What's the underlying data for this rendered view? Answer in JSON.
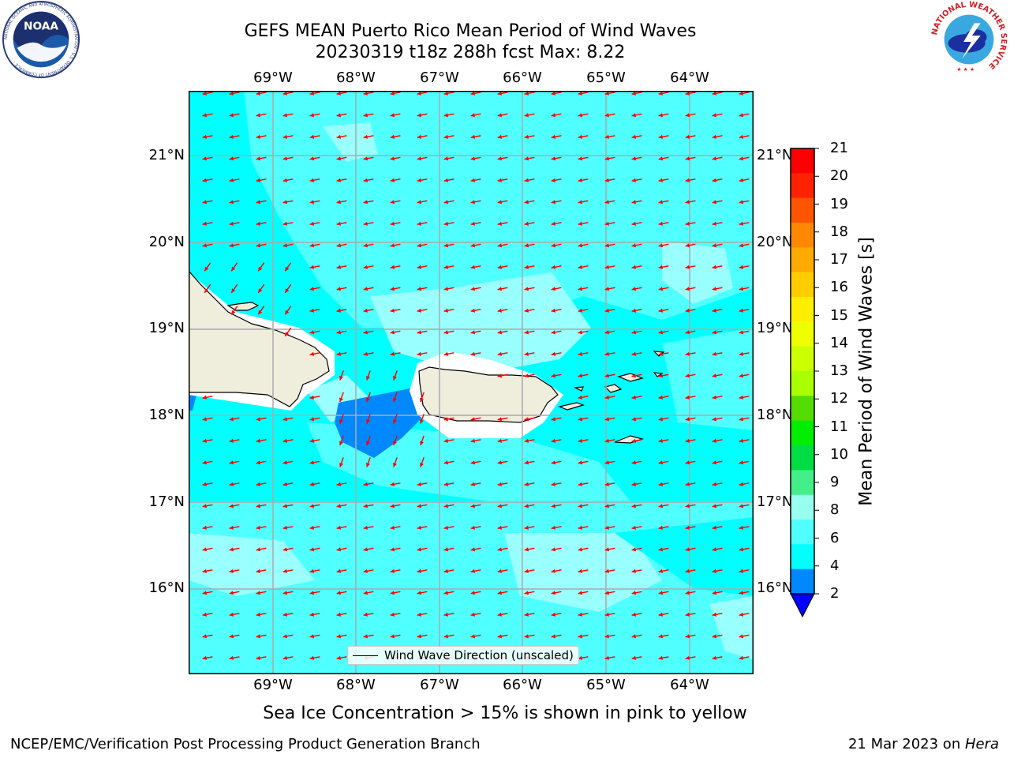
{
  "title": {
    "line1": "GEFS MEAN Puerto Rico Mean Period of Wind Waves",
    "line2": "20230319 t18z 288h fcst   Max: 8.22"
  },
  "map": {
    "lon_labels": [
      "69°W",
      "68°W",
      "67°W",
      "66°W",
      "65°W",
      "64°W"
    ],
    "lat_labels": [
      "21°N",
      "20°N",
      "19°N",
      "18°N",
      "17°N",
      "16°N"
    ],
    "ocean_color": "#00ffff",
    "light_color": "#50ffff",
    "lighter_color": "#99ffff",
    "dark_color": "#0088ff",
    "land_color": "#efeddc",
    "arrow_color": "#ff0000",
    "grid_color": "#aaaaaa"
  },
  "legend": {
    "label": "Wind Wave Direction (unscaled)"
  },
  "colorbar": {
    "title": "Mean Period of Wind Waves [s]",
    "ticks": [
      "21",
      "20",
      "19",
      "18",
      "17",
      "16",
      "15",
      "14",
      "13",
      "12",
      "11",
      "10",
      "9",
      "8",
      "6",
      "4",
      "2"
    ],
    "colors": [
      "#ff0000",
      "#ff2200",
      "#ff5500",
      "#ff8800",
      "#ffaa00",
      "#ffcc00",
      "#ffee00",
      "#eeff00",
      "#ccff00",
      "#aaff00",
      "#55dd00",
      "#00ee00",
      "#00dd44",
      "#44ee88",
      "#99ffee",
      "#50ffff",
      "#00ffff",
      "#0088ff",
      "#0000ff"
    ]
  },
  "caption": "Sea Ice Concentration > 15% is shown in pink to yellow",
  "footer": {
    "left": "NCEP/EMC/Verification Post Processing Product Generation Branch",
    "right_prefix": "21 Mar 2023 on ",
    "right_machine": "Hera"
  },
  "logos": {
    "noaa_text": "NOAA",
    "noaa_ring": "NATIONAL OCEANIC AND ATMOSPHERIC ADMINISTRATION · U.S. DEPARTMENT OF COMMERCE ·",
    "nws_ring": "NATIONAL WEATHER SERVICE"
  }
}
